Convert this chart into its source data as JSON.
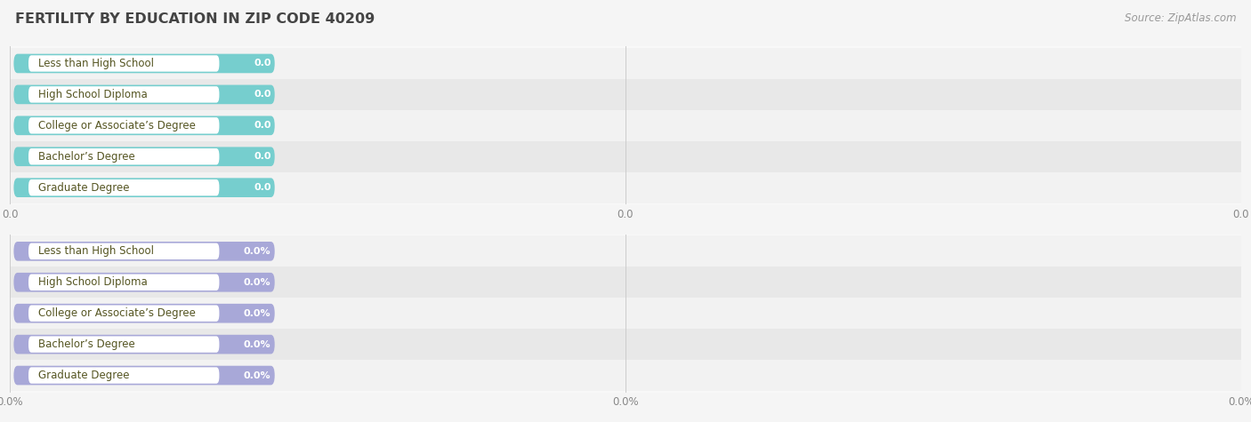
{
  "title": "FERTILITY BY EDUCATION IN ZIP CODE 40209",
  "source": "Source: ZipAtlas.com",
  "categories": [
    "Less than High School",
    "High School Diploma",
    "College or Associate’s Degree",
    "Bachelor’s Degree",
    "Graduate Degree"
  ],
  "top_values": [
    0.0,
    0.0,
    0.0,
    0.0,
    0.0
  ],
  "bottom_values": [
    0.0,
    0.0,
    0.0,
    0.0,
    0.0
  ],
  "top_bar_color": "#76cece",
  "top_cap_color": "#6bbfbf",
  "top_label_bg": "#ffffff",
  "bottom_bar_color": "#a8a8d8",
  "bottom_cap_color": "#9898c8",
  "bottom_label_bg": "#ffffff",
  "label_text_color": "#555522",
  "value_text_color": "#ffffff",
  "row_bg_light": "#f2f2f2",
  "row_bg_dark": "#e8e8e8",
  "panel_bg": "#f8f8f8",
  "fig_bg": "#f5f5f5",
  "tick_color": "#888888",
  "grid_color": "#cccccc",
  "title_color": "#444444",
  "source_color": "#999999",
  "title_fontsize": 11.5,
  "source_fontsize": 8.5,
  "label_fontsize": 8.5,
  "value_fontsize": 8.0,
  "tick_fontsize": 8.5
}
